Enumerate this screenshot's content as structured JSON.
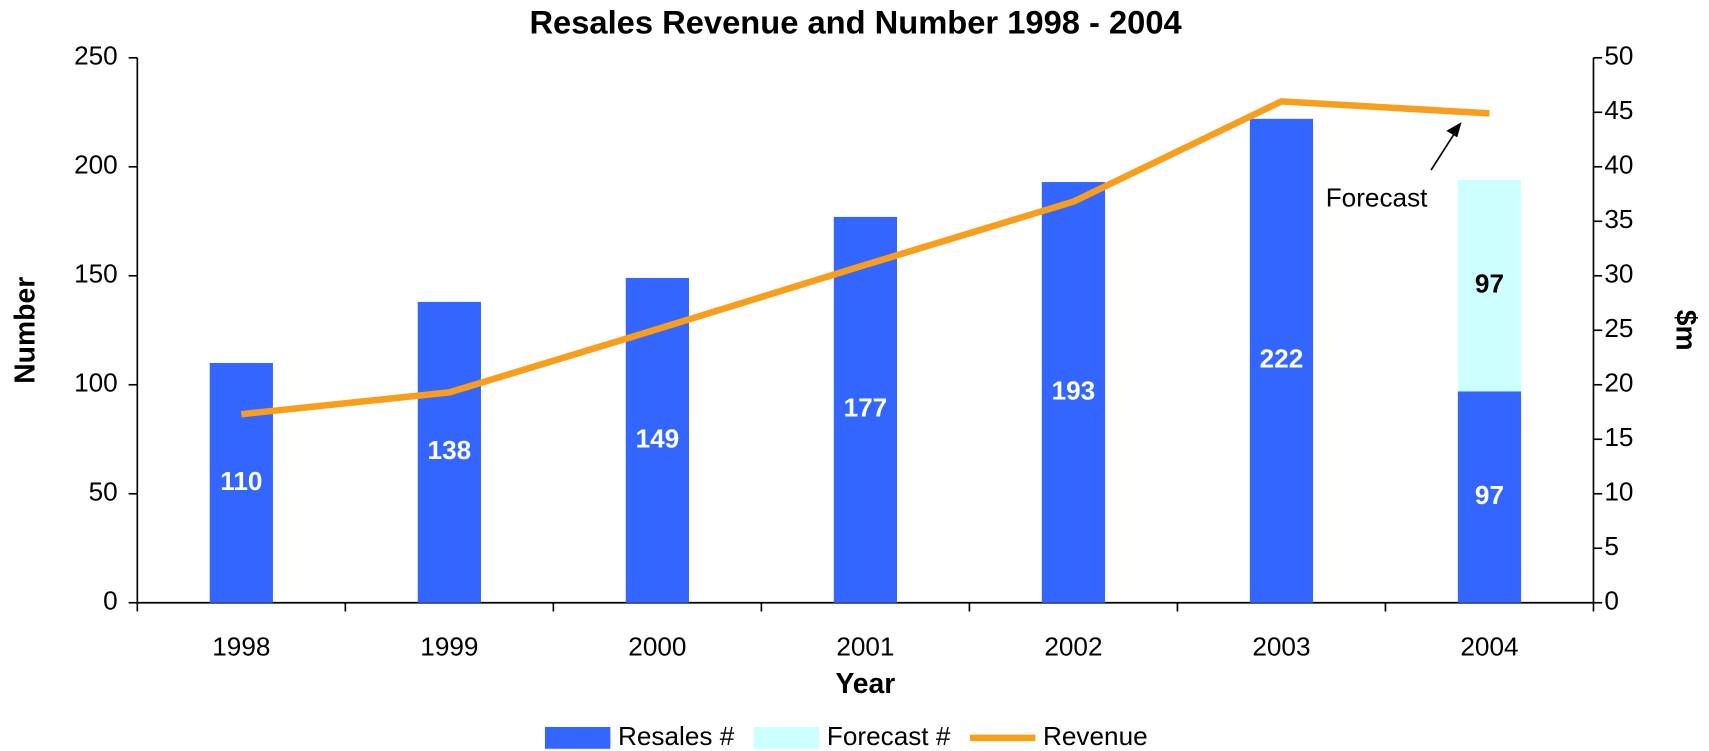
{
  "chart_data": {
    "type": "bar",
    "stacked": true,
    "title": "Resales Revenue and Number 1998 - 2004",
    "x_label": "Year",
    "y_label": "Number",
    "y2_label": "$m",
    "categories": [
      "1998",
      "1999",
      "2000",
      "2001",
      "2002",
      "2003",
      "2004"
    ],
    "series": [
      {
        "name": "Resales #",
        "type": "bar",
        "color": "#3366ff",
        "label_color": "#ffffff",
        "values": [
          110,
          138,
          149,
          177,
          193,
          222,
          97
        ]
      },
      {
        "name": "Forecast #",
        "type": "bar",
        "color": "#ccffff",
        "label_color": "#000000",
        "values": [
          null,
          null,
          null,
          null,
          null,
          null,
          97
        ]
      },
      {
        "name": "Revenue",
        "type": "line",
        "axis": "y2",
        "color": "#f99d1c",
        "values": [
          17.3,
          19.3,
          25.1,
          31,
          36.8,
          46,
          44.9
        ]
      }
    ],
    "ylim": [
      0,
      250
    ],
    "yticks": [
      0,
      50,
      100,
      150,
      200,
      250
    ],
    "y2lim": [
      0,
      50
    ],
    "y2ticks": [
      0,
      5,
      10,
      15,
      20,
      25,
      30,
      35,
      40,
      45,
      50
    ],
    "grid": false,
    "legend": "bottom",
    "annotations": [
      {
        "text": "Forecast"
      }
    ]
  }
}
